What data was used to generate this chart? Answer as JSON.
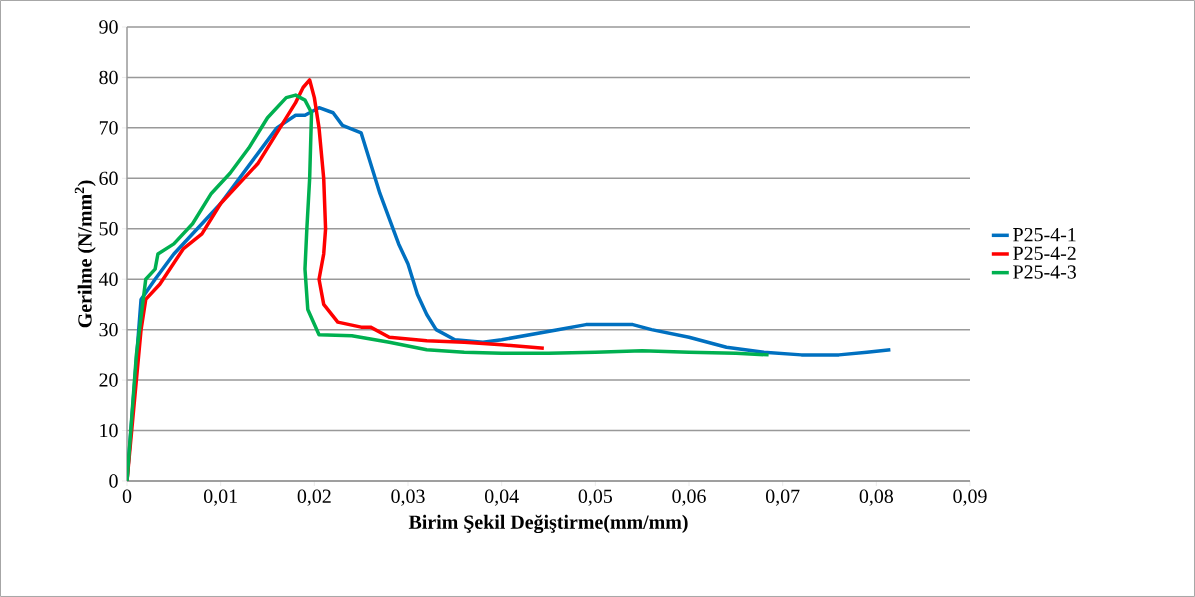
{
  "chart_data": {
    "type": "line",
    "xlabel": "Birim Şekil Değiştirme(mm/mm)",
    "ylabel": "Gerilme (N/mm$^{2}$)",
    "xlim": [
      0,
      0.09
    ],
    "ylim": [
      0,
      90
    ],
    "xticks": [
      0,
      {
        "value": 0.01,
        "label": "0,01"
      },
      {
        "value": 0.02,
        "label": "0,02"
      },
      {
        "value": 0.03,
        "label": "0,03"
      },
      {
        "value": 0.04,
        "label": "0,04"
      },
      {
        "value": 0.05,
        "label": "0,05"
      },
      {
        "value": 0.06,
        "label": "0,06"
      },
      {
        "value": 0.07,
        "label": "0,07"
      },
      {
        "value": 0.08,
        "label": "0,08"
      },
      {
        "value": 0.09,
        "label": "0,09"
      }
    ],
    "yticks": [
      0,
      10,
      20,
      30,
      40,
      50,
      60,
      70,
      80,
      90
    ],
    "grid": "y",
    "legend": "right",
    "marker": "none",
    "line_style": "solid",
    "series": [
      {
        "name": "P25-4-1",
        "color": "#0070c0",
        "x": [
          0,
          0.0015,
          0.003,
          0.005,
          0.008,
          0.01,
          0.012,
          0.014,
          0.016,
          0.018,
          0.019,
          0.0205,
          0.022,
          0.023,
          0.025,
          0.026,
          0.027,
          0.028,
          0.029,
          0.03,
          0.031,
          0.032,
          0.033,
          0.035,
          0.038,
          0.04,
          0.043,
          0.046,
          0.049,
          0.052,
          0.054,
          0.056,
          0.06,
          0.064,
          0.068,
          0.072,
          0.076,
          0.079,
          0.0815
        ],
        "values": [
          0,
          36,
          40,
          45,
          51,
          55,
          60,
          65,
          70,
          72.5,
          72.5,
          74,
          73,
          70.5,
          69,
          63,
          57,
          52,
          47,
          43,
          37,
          33,
          30,
          28,
          27.5,
          28,
          29,
          30,
          31,
          31,
          31,
          30,
          28.5,
          26.5,
          25.5,
          25,
          25,
          25.5,
          26
        ]
      },
      {
        "name": "P25-4-2",
        "color": "#ff0000",
        "x": [
          0,
          0.0015,
          0.002,
          0.0035,
          0.006,
          0.008,
          0.01,
          0.012,
          0.014,
          0.016,
          0.018,
          0.0188,
          0.0195,
          0.02,
          0.0205,
          0.021,
          0.0212,
          0.021,
          0.0205,
          0.021,
          0.0225,
          0.025,
          0.026,
          0.028,
          0.032,
          0.036,
          0.04,
          0.0445
        ],
        "values": [
          0,
          30,
          36,
          39,
          46,
          49,
          55,
          59,
          63,
          69,
          75,
          78,
          79.5,
          76,
          70,
          60,
          50,
          45,
          40,
          35,
          31.5,
          30.5,
          30.5,
          28.5,
          27.8,
          27.5,
          27,
          26.3
        ]
      },
      {
        "name": "P25-4-3",
        "color": "#00b050",
        "x": [
          0,
          0.001,
          0.002,
          0.003,
          0.0033,
          0.005,
          0.007,
          0.009,
          0.011,
          0.013,
          0.015,
          0.017,
          0.018,
          0.019,
          0.0197,
          0.0195,
          0.0192,
          0.019,
          0.0193,
          0.0205,
          0.024,
          0.028,
          0.032,
          0.036,
          0.04,
          0.045,
          0.05,
          0.055,
          0.06,
          0.065,
          0.0685
        ],
        "values": [
          0,
          25,
          40,
          42,
          45,
          47,
          51,
          57,
          61,
          66,
          72,
          76,
          76.5,
          75.5,
          73,
          60,
          50,
          42,
          34,
          29,
          28.8,
          27.5,
          26,
          25.5,
          25.3,
          25.3,
          25.5,
          25.8,
          25.5,
          25.3,
          25
        ]
      }
    ]
  }
}
